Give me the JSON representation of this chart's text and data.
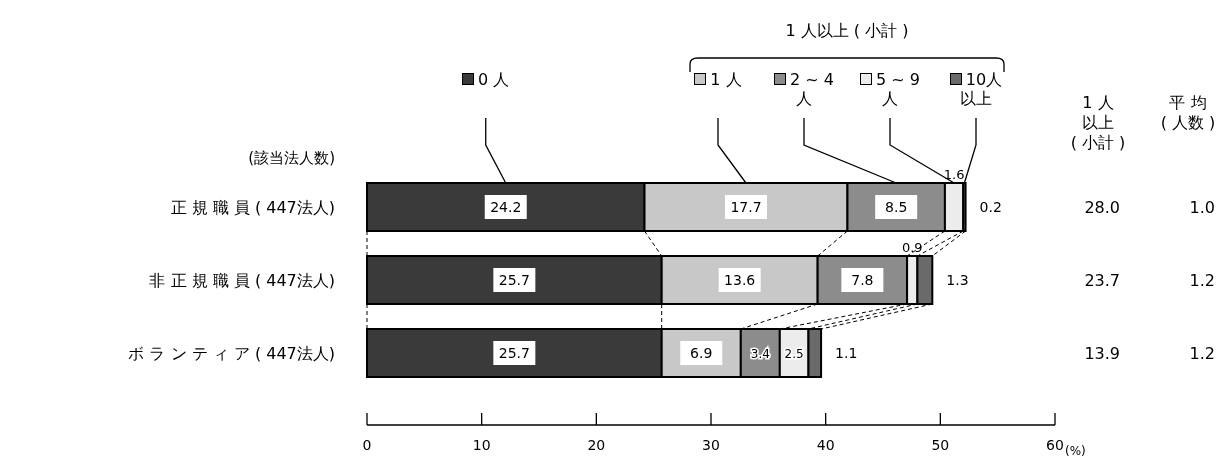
{
  "chart_data": {
    "type": "bar",
    "orientation": "horizontal",
    "stacked": true,
    "categories": [
      "正 規 職 員 ( 447法人)",
      "非 正 規 職 員 ( 447法人)",
      "ボ ラ ン テ ィ ア ( 447法人)"
    ],
    "series": [
      {
        "name": "0 人",
        "color": "#3a3a3a",
        "values": [
          24.2,
          25.7,
          25.7
        ]
      },
      {
        "name": "1 人",
        "color": "#c8c8c8",
        "values": [
          17.7,
          13.6,
          6.9
        ]
      },
      {
        "name": "2 ~ 4 人",
        "color": "#8c8c8c",
        "values": [
          8.5,
          7.8,
          3.4
        ]
      },
      {
        "name": "5 ~ 9 人",
        "color": "#ececec",
        "values": [
          1.6,
          0.9,
          2.5
        ]
      },
      {
        "name": "10人以上",
        "color": "#6a6a6a",
        "values": [
          0.2,
          1.3,
          1.1
        ]
      }
    ],
    "xlim": [
      0,
      60
    ],
    "xticks": [
      0,
      10,
      20,
      30,
      40,
      50,
      60
    ],
    "xlabel": "(%)",
    "data_labels": true,
    "legend": "top",
    "annotations": [
      "1 人以上 ( 小計 )",
      "(該当法人数)",
      "1 人",
      "以上",
      "( 小計 )",
      "平 均",
      "( 人数 )",
      "28.0",
      "23.7",
      "13.9",
      "1.0",
      "1.2",
      "1.2"
    ]
  }
}
